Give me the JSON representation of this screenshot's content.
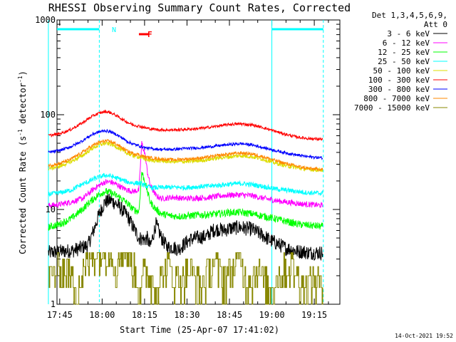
{
  "chart_data": {
    "type": "line",
    "title": "RHESSI Observing Summary Count Rates, Corrected",
    "xlabel": "Start Time (25-Apr-07 17:41:02)",
    "ylabel": "Corrected Count Rate (s",
    "ylabel_sup1": "-1",
    "ylabel_mid": " detector",
    "ylabel_sup2": "-1",
    "ylabel_end": ")",
    "yscale": "log",
    "ylim": [
      1,
      1000
    ],
    "xlim_minutes": [
      -4.03,
      96.0
    ],
    "x_ticks": [
      {
        "label": "17:45",
        "minute": 0
      },
      {
        "label": "18:00",
        "minute": 15
      },
      {
        "label": "18:15",
        "minute": 30
      },
      {
        "label": "18:30",
        "minute": 45
      },
      {
        "label": "18:45",
        "minute": 60
      },
      {
        "label": "19:00",
        "minute": 75
      },
      {
        "label": "19:15",
        "minute": 90
      }
    ],
    "y_ticks": [
      {
        "label": "1",
        "value": 1
      },
      {
        "label": "10",
        "value": 10
      },
      {
        "label": "100",
        "value": 100
      },
      {
        "label": "1000",
        "value": 1000
      }
    ],
    "detectors": "Det 1,3,4,5,6,9,",
    "attenuator": "Att 0",
    "night_marker": "N",
    "flare_marker": "F",
    "timestamp": "14-Oct-2021 19:52",
    "night_segments_minutes": [
      [
        -4.0,
        14.0
      ],
      [
        75.0,
        93.2
      ]
    ],
    "flare_segment_minutes": [
      28.0,
      31.5
    ],
    "series": [
      {
        "name": "3 - 6 keV",
        "color": "#000000",
        "points": [
          [
            -4,
            3.5
          ],
          [
            0,
            3.6
          ],
          [
            5,
            3.7
          ],
          [
            10,
            4.2
          ],
          [
            12,
            6
          ],
          [
            14,
            9
          ],
          [
            16,
            12
          ],
          [
            18,
            12.5
          ],
          [
            20,
            11.5
          ],
          [
            22,
            10
          ],
          [
            24,
            8.5
          ],
          [
            26,
            6.5
          ],
          [
            28,
            5
          ],
          [
            30,
            4.8
          ],
          [
            31,
            5
          ],
          [
            32,
            4
          ],
          [
            34,
            7
          ],
          [
            36,
            5
          ],
          [
            38,
            4
          ],
          [
            40,
            4
          ],
          [
            42,
            3.8
          ],
          [
            44,
            4.3
          ],
          [
            46,
            4.8
          ],
          [
            48,
            5
          ],
          [
            50,
            5.1
          ],
          [
            52,
            5.2
          ],
          [
            54,
            6
          ],
          [
            56,
            6.2
          ],
          [
            58,
            6
          ],
          [
            60,
            6.3
          ],
          [
            62,
            6.4
          ],
          [
            64,
            6.5
          ],
          [
            66,
            6.3
          ],
          [
            68,
            6.2
          ],
          [
            70,
            5.7
          ],
          [
            72,
            5.3
          ],
          [
            74,
            4.8
          ],
          [
            76,
            4.5
          ],
          [
            78,
            4.2
          ],
          [
            80,
            3.9
          ],
          [
            82,
            3.8
          ],
          [
            84,
            3.6
          ],
          [
            86,
            3.6
          ],
          [
            88,
            3.5
          ],
          [
            90,
            3.5
          ],
          [
            93,
            3.5
          ]
        ]
      },
      {
        "name": "6 - 12 keV",
        "color": "#ff00ff",
        "points": [
          [
            -4,
            11
          ],
          [
            0,
            11.3
          ],
          [
            4,
            12
          ],
          [
            8,
            13
          ],
          [
            10,
            14.5
          ],
          [
            12,
            16.5
          ],
          [
            14,
            18
          ],
          [
            16,
            19.5
          ],
          [
            18,
            19.5
          ],
          [
            20,
            18.5
          ],
          [
            22,
            17
          ],
          [
            24,
            16
          ],
          [
            26,
            15.5
          ],
          [
            28,
            16
          ],
          [
            29,
            50
          ],
          [
            30,
            40
          ],
          [
            31,
            25
          ],
          [
            32,
            18
          ],
          [
            34,
            14
          ],
          [
            36,
            13
          ],
          [
            38,
            13.2
          ],
          [
            40,
            13.5
          ],
          [
            44,
            13
          ],
          [
            48,
            13.2
          ],
          [
            52,
            13.3
          ],
          [
            56,
            13.8
          ],
          [
            60,
            14.2
          ],
          [
            64,
            14.3
          ],
          [
            68,
            14
          ],
          [
            70,
            13.5
          ],
          [
            74,
            12.8
          ],
          [
            78,
            12.2
          ],
          [
            82,
            11.8
          ],
          [
            86,
            11.4
          ],
          [
            90,
            11.2
          ],
          [
            93,
            11
          ]
        ]
      },
      {
        "name": "12 - 25 keV",
        "color": "#00ff00",
        "points": [
          [
            -4,
            6.5
          ],
          [
            0,
            7
          ],
          [
            4,
            8
          ],
          [
            8,
            10
          ],
          [
            10,
            11.5
          ],
          [
            12,
            13
          ],
          [
            14,
            14.5
          ],
          [
            16,
            15.5
          ],
          [
            18,
            15
          ],
          [
            20,
            14
          ],
          [
            22,
            13
          ],
          [
            24,
            11.5
          ],
          [
            26,
            10
          ],
          [
            28,
            9.5
          ],
          [
            29,
            25
          ],
          [
            30,
            20
          ],
          [
            32,
            12
          ],
          [
            34,
            10
          ],
          [
            36,
            9
          ],
          [
            40,
            8.5
          ],
          [
            44,
            8.5
          ],
          [
            48,
            8.7
          ],
          [
            52,
            8.8
          ],
          [
            56,
            9
          ],
          [
            60,
            9.3
          ],
          [
            64,
            9.3
          ],
          [
            68,
            9
          ],
          [
            72,
            8.5
          ],
          [
            76,
            8
          ],
          [
            80,
            7.5
          ],
          [
            84,
            7
          ],
          [
            88,
            6.8
          ],
          [
            93,
            6.6
          ]
        ]
      },
      {
        "name": "25 - 50 keV",
        "color": "#00ffff",
        "points": [
          [
            -4,
            14.5
          ],
          [
            0,
            15
          ],
          [
            4,
            16
          ],
          [
            8,
            18.5
          ],
          [
            10,
            19.5
          ],
          [
            12,
            21
          ],
          [
            14,
            22
          ],
          [
            16,
            23
          ],
          [
            18,
            22.5
          ],
          [
            20,
            21.5
          ],
          [
            22,
            20.5
          ],
          [
            24,
            19.5
          ],
          [
            26,
            19
          ],
          [
            28,
            19
          ],
          [
            30,
            18
          ],
          [
            32,
            17
          ],
          [
            36,
            17
          ],
          [
            40,
            17.2
          ],
          [
            44,
            17
          ],
          [
            48,
            17.3
          ],
          [
            52,
            17.6
          ],
          [
            56,
            18
          ],
          [
            60,
            18.5
          ],
          [
            64,
            18.8
          ],
          [
            68,
            18.3
          ],
          [
            72,
            17.5
          ],
          [
            76,
            16.5
          ],
          [
            80,
            16
          ],
          [
            84,
            15.5
          ],
          [
            88,
            15
          ],
          [
            93,
            14.8
          ]
        ]
      },
      {
        "name": "50 - 100 keV",
        "color": "#dddd00",
        "points": [
          [
            -4,
            27
          ],
          [
            0,
            28.5
          ],
          [
            4,
            32
          ],
          [
            8,
            37
          ],
          [
            10,
            41
          ],
          [
            12,
            45
          ],
          [
            14,
            48
          ],
          [
            16,
            50
          ],
          [
            18,
            49
          ],
          [
            20,
            46
          ],
          [
            22,
            42
          ],
          [
            24,
            39
          ],
          [
            26,
            37
          ],
          [
            28,
            36
          ],
          [
            30,
            34
          ],
          [
            32,
            33
          ],
          [
            36,
            32.5
          ],
          [
            40,
            32
          ],
          [
            44,
            32
          ],
          [
            48,
            32.5
          ],
          [
            52,
            33.5
          ],
          [
            56,
            35
          ],
          [
            60,
            36
          ],
          [
            64,
            37
          ],
          [
            68,
            36
          ],
          [
            72,
            34
          ],
          [
            76,
            31
          ],
          [
            80,
            29
          ],
          [
            84,
            27.5
          ],
          [
            88,
            26.5
          ],
          [
            93,
            26
          ]
        ]
      },
      {
        "name": "100 - 300 keV",
        "color": "#ff0000",
        "points": [
          [
            -4,
            60
          ],
          [
            0,
            63
          ],
          [
            4,
            70
          ],
          [
            8,
            82
          ],
          [
            10,
            90
          ],
          [
            12,
            98
          ],
          [
            14,
            104
          ],
          [
            16,
            108
          ],
          [
            18,
            105
          ],
          [
            20,
            98
          ],
          [
            22,
            90
          ],
          [
            24,
            83
          ],
          [
            26,
            78
          ],
          [
            28,
            76
          ],
          [
            30,
            73
          ],
          [
            32,
            71
          ],
          [
            36,
            69
          ],
          [
            40,
            69
          ],
          [
            44,
            70
          ],
          [
            48,
            71
          ],
          [
            52,
            73
          ],
          [
            56,
            76
          ],
          [
            60,
            79
          ],
          [
            64,
            80
          ],
          [
            68,
            78
          ],
          [
            72,
            73
          ],
          [
            76,
            67
          ],
          [
            80,
            62
          ],
          [
            84,
            58
          ],
          [
            88,
            56
          ],
          [
            93,
            55
          ]
        ]
      },
      {
        "name": "300 - 800 keV",
        "color": "#0000ff",
        "points": [
          [
            -4,
            40
          ],
          [
            0,
            42
          ],
          [
            4,
            46
          ],
          [
            8,
            53
          ],
          [
            10,
            58
          ],
          [
            12,
            63
          ],
          [
            14,
            66
          ],
          [
            16,
            68
          ],
          [
            18,
            66
          ],
          [
            20,
            62
          ],
          [
            22,
            57
          ],
          [
            24,
            52
          ],
          [
            26,
            49
          ],
          [
            28,
            47
          ],
          [
            30,
            45
          ],
          [
            32,
            44
          ],
          [
            36,
            43
          ],
          [
            40,
            43
          ],
          [
            44,
            44
          ],
          [
            48,
            44.5
          ],
          [
            52,
            45.5
          ],
          [
            56,
            47
          ],
          [
            60,
            48.5
          ],
          [
            64,
            49.5
          ],
          [
            68,
            48
          ],
          [
            72,
            45
          ],
          [
            76,
            42
          ],
          [
            80,
            39.5
          ],
          [
            84,
            37.5
          ],
          [
            88,
            36
          ],
          [
            93,
            35
          ]
        ]
      },
      {
        "name": "800 - 7000 keV",
        "color": "#ff8800",
        "points": [
          [
            -4,
            29
          ],
          [
            0,
            30.5
          ],
          [
            4,
            34
          ],
          [
            8,
            40
          ],
          [
            10,
            44
          ],
          [
            12,
            48
          ],
          [
            14,
            51
          ],
          [
            16,
            53
          ],
          [
            18,
            52
          ],
          [
            20,
            49
          ],
          [
            22,
            45
          ],
          [
            24,
            41
          ],
          [
            26,
            39
          ],
          [
            28,
            38
          ],
          [
            30,
            36
          ],
          [
            32,
            35
          ],
          [
            36,
            34
          ],
          [
            40,
            33.5
          ],
          [
            44,
            34
          ],
          [
            48,
            34.5
          ],
          [
            52,
            35.5
          ],
          [
            56,
            37
          ],
          [
            60,
            38.5
          ],
          [
            64,
            39.5
          ],
          [
            68,
            38.5
          ],
          [
            72,
            36
          ],
          [
            76,
            33
          ],
          [
            80,
            30.5
          ],
          [
            84,
            28.5
          ],
          [
            88,
            27
          ],
          [
            93,
            26.5
          ]
        ]
      },
      {
        "name": "7000 - 15000 keV",
        "color": "#888800",
        "points": [
          [
            -4,
            2
          ],
          [
            2,
            2.6
          ],
          [
            6,
            1.5
          ],
          [
            10,
            2.8
          ],
          [
            12,
            3.5
          ],
          [
            14,
            3.3
          ],
          [
            16,
            4
          ],
          [
            18,
            3.6
          ],
          [
            20,
            2.5
          ],
          [
            22,
            3.8
          ],
          [
            24,
            3.6
          ],
          [
            26,
            2.6
          ],
          [
            28,
            1.4
          ],
          [
            30,
            2.2
          ],
          [
            34,
            1.6
          ],
          [
            38,
            2.6
          ],
          [
            42,
            1.8
          ],
          [
            46,
            2.4
          ],
          [
            50,
            1.5
          ],
          [
            54,
            2.8
          ],
          [
            58,
            2
          ],
          [
            62,
            2.6
          ],
          [
            64,
            3
          ],
          [
            66,
            1.7
          ],
          [
            70,
            2.4
          ],
          [
            74,
            1.4
          ],
          [
            78,
            2.2
          ],
          [
            82,
            2.6
          ],
          [
            86,
            1.6
          ],
          [
            90,
            1.9
          ],
          [
            93,
            1.5
          ]
        ]
      }
    ]
  }
}
